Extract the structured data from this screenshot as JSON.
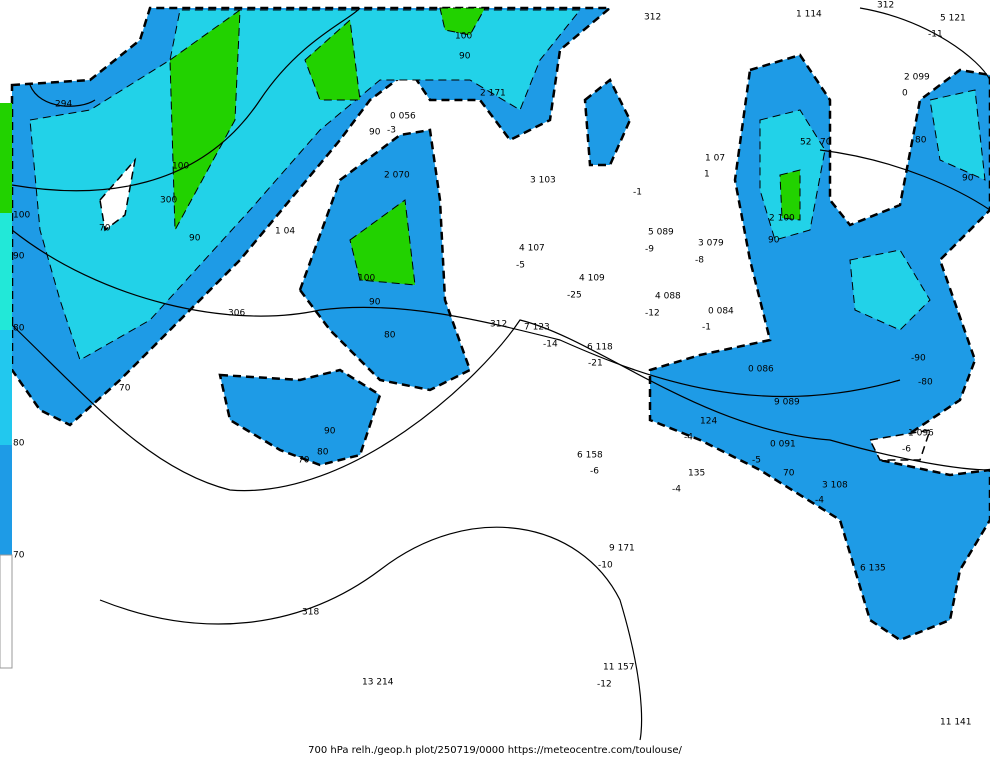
{
  "legend": {
    "labels": [
      "100",
      "90",
      "80",
      "80",
      "70"
    ]
  },
  "map_labels": [
    "312",
    "312",
    "1 114",
    "5 121",
    "-11",
    "2 099",
    "0",
    "294",
    "100",
    "90",
    "2 171",
    "0 056",
    "-3",
    "1 07",
    "1",
    "3 103",
    "-1",
    "2 070",
    "100",
    "300",
    "90",
    "70",
    "1 04",
    "4 107",
    "-5",
    "5 089",
    "-9",
    "3 079",
    "-8",
    "4 109",
    "-25",
    "4 088",
    "-12",
    "0 084",
    "-1",
    "100",
    "90",
    "80",
    "306",
    "312",
    "7 123",
    "-14",
    "6 118",
    "-21",
    "70",
    "0 086",
    "9 089",
    "124",
    "-4",
    "0 091",
    "-5",
    "90",
    "70",
    "80",
    "1 096",
    "-6",
    "6 158",
    "-6",
    "135",
    "-4",
    "70",
    "3 108",
    "-4",
    "9 171",
    "-10",
    "6 135",
    "318",
    "11 157",
    "-12",
    "13 214",
    "11 141",
    "80",
    "90",
    "90",
    "52",
    "70",
    "-90",
    "-80",
    "2 100",
    "90"
  ],
  "caption": "700 hPa relh./geop.h plot/250719/0000 https://meteocentre.com/toulouse/"
}
